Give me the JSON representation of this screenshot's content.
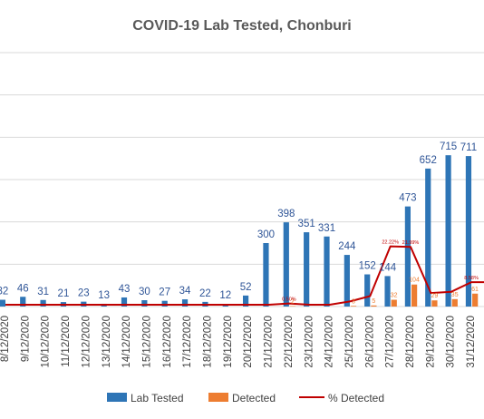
{
  "chart_data": {
    "type": "bar",
    "title": "COVID-19 Lab Tested, Chonburi",
    "categories": [
      "8/12/2020",
      "9/12/2020",
      "10/12/2020",
      "11/12/2020",
      "12/12/2020",
      "13/12/2020",
      "14/12/2020",
      "15/12/2020",
      "16/12/2020",
      "17/12/2020",
      "18/12/2020",
      "19/12/2020",
      "20/12/2020",
      "21/12/2020",
      "22/12/2020",
      "23/12/2020",
      "24/12/2020",
      "25/12/2020",
      "26/12/2020",
      "27/12/2020",
      "28/12/2020",
      "29/12/2020",
      "30/12/2020",
      "31/12/2020"
    ],
    "series": [
      {
        "name": "Lab Tested",
        "type": "bar",
        "color": "#2e75b6",
        "values": [
          32,
          46,
          31,
          21,
          23,
          13,
          43,
          30,
          27,
          34,
          22,
          12,
          52,
          300,
          398,
          351,
          331,
          244,
          152,
          144,
          473,
          652,
          715,
          711
        ]
      },
      {
        "name": "Detected",
        "type": "bar",
        "color": "#ed7d31",
        "values": [
          0,
          0,
          0,
          0,
          0,
          0,
          0,
          0,
          0,
          0,
          0,
          0,
          0,
          0,
          2,
          0,
          0,
          3,
          5,
          32,
          104,
          29,
          35,
          61
        ],
        "labels": [
          "",
          "",
          "",
          "",
          "",
          "",
          "",
          "",
          "",
          "",
          "",
          "",
          "",
          "",
          "2",
          "",
          "",
          "3",
          "5",
          "32",
          "104",
          "29",
          "35",
          "61"
        ]
      },
      {
        "name": "% Detected",
        "type": "line",
        "color": "#c00000",
        "values": [
          0,
          0,
          0,
          0,
          0,
          0,
          0,
          0,
          0,
          0,
          0,
          0,
          0,
          0,
          0.5,
          0,
          0,
          1.23,
          3.29,
          22.22,
          21.99,
          4.45,
          4.9,
          8.58
        ],
        "labels": [
          "",
          "",
          "",
          "",
          "",
          "",
          "",
          "",
          "",
          "",
          "",
          "",
          "",
          "",
          "0.50%",
          "",
          "",
          "",
          "",
          "22.22%",
          "21.99%",
          "",
          "",
          "8.58%"
        ]
      }
    ],
    "ylim": [
      0,
      1200
    ],
    "grid": true,
    "legend": "bottom"
  }
}
